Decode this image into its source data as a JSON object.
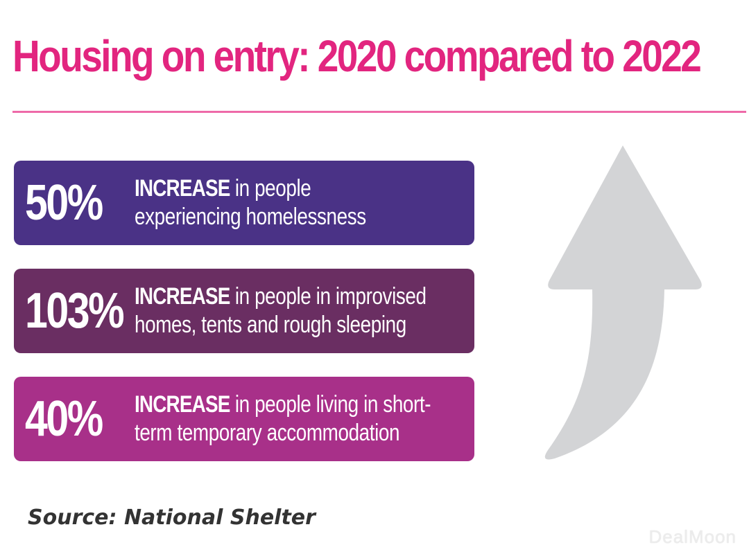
{
  "title": "Housing on entry: 2020 compared to 2022",
  "colors": {
    "title": "#e2257f",
    "rule": "#ee6aa8",
    "card_1": "#4a3286",
    "card_2": "#6a2e62",
    "card_3": "#a83089",
    "arrow": "#d3d4d6"
  },
  "stats": [
    {
      "value": "50%",
      "label_strong": "INCREASE",
      "label_line1_rest": " in people",
      "label_line2": "experiencing homelessness"
    },
    {
      "value": "103%",
      "label_strong": "INCREASE",
      "label_line1_rest": " in people in improvised",
      "label_line2": "homes, tents and rough sleeping"
    },
    {
      "value": "40%",
      "label_strong": "INCREASE",
      "label_line1_rest": " in people living in short-",
      "label_line2": "term temporary accommodation"
    }
  ],
  "arrow_icon": "up-arrow-icon",
  "source": "Source: National Shelter",
  "watermark": "DealMoon"
}
